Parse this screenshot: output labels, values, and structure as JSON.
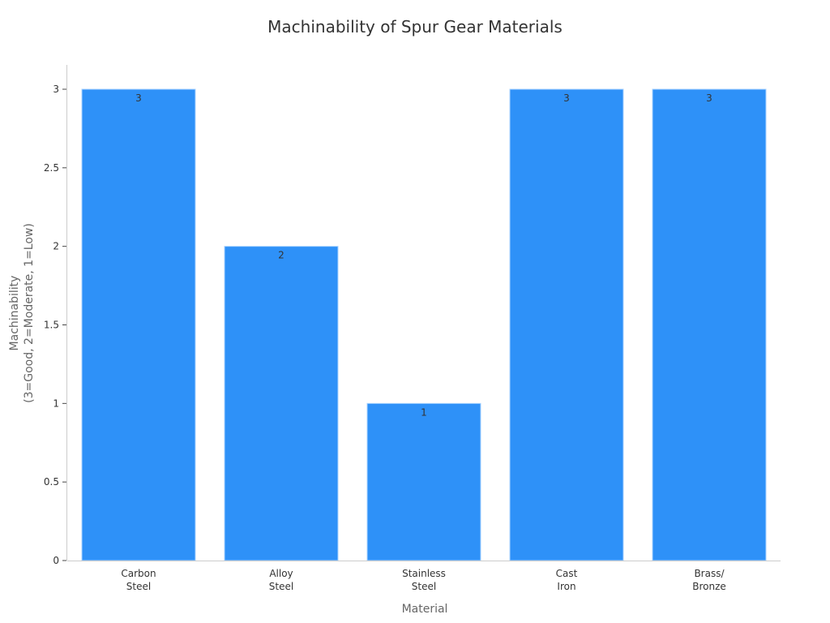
{
  "chart_data": {
    "type": "bar",
    "title": "Machinability of Spur Gear Materials",
    "xlabel": "Material",
    "ylabel": [
      "Machinability",
      "(3=Good, 2=Moderate, 1=Low)"
    ],
    "categories": [
      [
        "Carbon",
        "Steel"
      ],
      [
        "Alloy",
        "Steel"
      ],
      [
        "Stainless",
        "Steel"
      ],
      [
        "Cast",
        "Iron"
      ],
      [
        "Brass/",
        "Bronze"
      ]
    ],
    "values": [
      3,
      2,
      1,
      3,
      3
    ],
    "data_labels": [
      "3",
      "2",
      "1",
      "3",
      "3"
    ],
    "ylim": [
      0,
      3
    ],
    "yticks": [
      0,
      0.5,
      1,
      1.5,
      2,
      2.5,
      3
    ],
    "ytick_labels": [
      "0",
      "0.5",
      "1",
      "1.5",
      "2",
      "2.5",
      "3"
    ],
    "grid": false,
    "legend": "none",
    "colors": {
      "bar": "#2e91f8",
      "bar_edge": "#a9d3ff"
    }
  }
}
